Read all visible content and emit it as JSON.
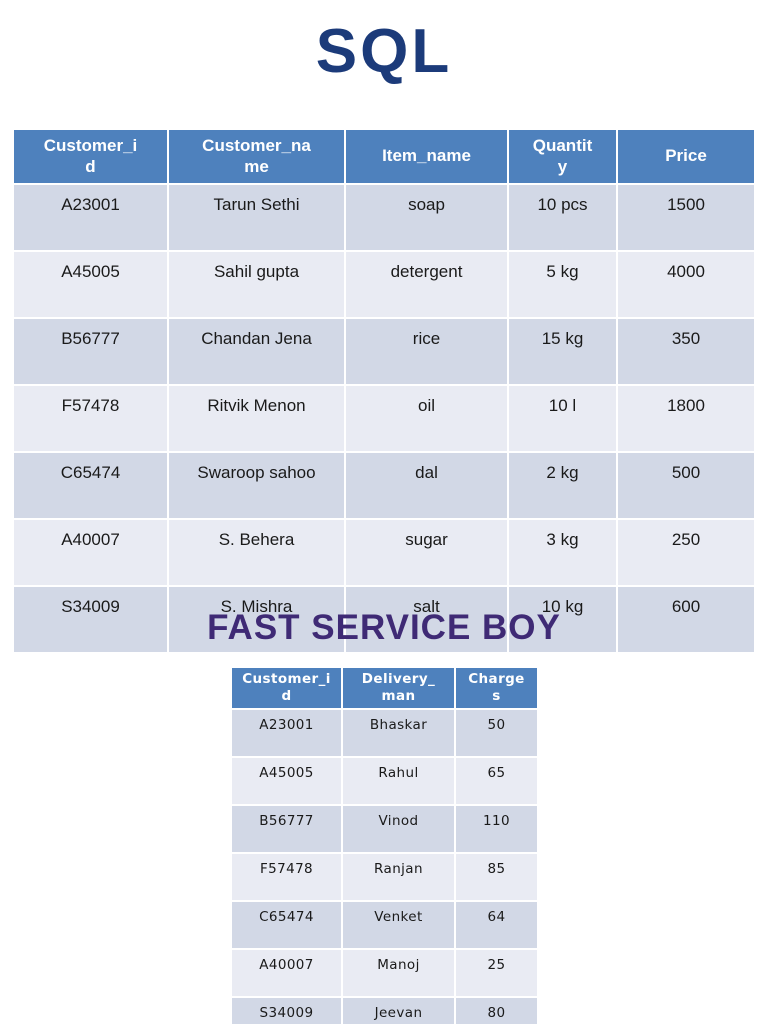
{
  "page": {
    "title": "SQL",
    "subtitle": "FAST SERVICE BOY"
  },
  "colors": {
    "title_navy": "#1c3b7a",
    "subtitle_purple": "#3f2a75",
    "table_header_blue": "#4e81bd",
    "row_band_dark": "#d2d8e6",
    "row_band_light": "#e9ebf3"
  },
  "orders_table": {
    "headers": [
      "Customer_i\nd",
      "Customer_na\nme",
      "Item_name",
      "Quantit\ny",
      "Price"
    ],
    "rows": [
      [
        "A23001",
        "Tarun Sethi",
        "soap",
        "10 pcs",
        "1500"
      ],
      [
        "A45005",
        "Sahil gupta",
        "detergent",
        "5 kg",
        "4000"
      ],
      [
        "B56777",
        "Chandan Jena",
        "rice",
        "15 kg",
        "350"
      ],
      [
        "F57478",
        "Ritvik Menon",
        "oil",
        "10 l",
        "1800"
      ],
      [
        "C65474",
        "Swaroop sahoo",
        "dal",
        "2 kg",
        "500"
      ],
      [
        "A40007",
        "S. Behera",
        "sugar",
        "3 kg",
        "250"
      ],
      [
        "S34009",
        "S. Mishra",
        "salt",
        "10 kg",
        "600"
      ]
    ]
  },
  "delivery_table": {
    "headers": [
      "Customer_i\nd",
      "Delivery_\nman",
      "Charge\ns"
    ],
    "rows": [
      [
        "A23001",
        "Bhaskar",
        "50"
      ],
      [
        "A45005",
        "Rahul",
        "65"
      ],
      [
        "B56777",
        "Vinod",
        "110"
      ],
      [
        "F57478",
        "Ranjan",
        "85"
      ],
      [
        "C65474",
        "Venket",
        "64"
      ],
      [
        "A40007",
        "Manoj",
        "25"
      ],
      [
        "S34009",
        "Jeevan",
        "80"
      ]
    ]
  }
}
